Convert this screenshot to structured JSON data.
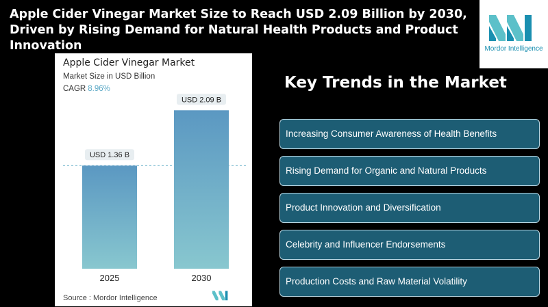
{
  "headline": "Apple Cider Vinegar Market Size to Reach USD 2.09 Billion by 2030, Driven by Rising Demand for Natural Health Products and Product Innovation",
  "brand": {
    "name": "Mordor Intelligence",
    "color": "#1a8fb0"
  },
  "card": {
    "title": "Apple Cider Vinegar Market",
    "subtitle": "Market Size in USD Billion",
    "cagr_label": "CAGR",
    "cagr_value": "8.96%",
    "source": "Source :  Mordor Intelligence"
  },
  "chart_data": {
    "type": "bar",
    "categories": [
      "2025",
      "2030"
    ],
    "values": [
      1.36,
      2.09
    ],
    "data_labels": [
      "USD 1.36 B",
      "USD 2.09 B"
    ],
    "ylim": [
      0,
      2.3
    ],
    "grid": false,
    "reference_line": "dashed line at 2025 value",
    "colors": {
      "bar_top": "#5b98c2",
      "bar_bottom": "#88c7cf",
      "label_bg": "#e8eef1"
    }
  },
  "trends": {
    "title": "Key Trends in the Market",
    "items": [
      "Increasing Consumer Awareness of Health Benefits",
      "Rising Demand for Organic and Natural Products",
      "Product Innovation and Diversification",
      "Celebrity and Influencer Endorsements",
      "Production Costs and Raw Material Volatility"
    ]
  }
}
